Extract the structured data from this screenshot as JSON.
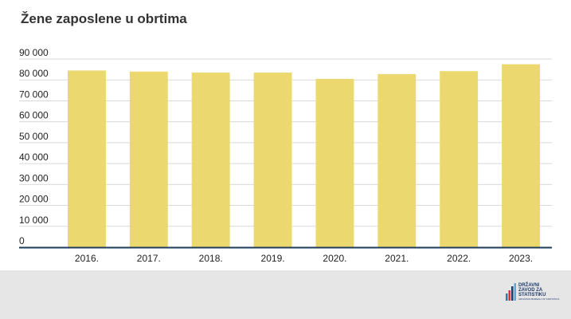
{
  "chart_data": {
    "type": "bar",
    "title": "Žene zaposlene u obrtima",
    "categories": [
      "2016.",
      "2017.",
      "2018.",
      "2019.",
      "2020.",
      "2021.",
      "2022.",
      "2023."
    ],
    "values": [
      84500,
      84000,
      83500,
      83500,
      80500,
      82800,
      84200,
      87500
    ],
    "ylim": [
      0,
      90000
    ],
    "yticks": [
      "0",
      "10 000",
      "20 000",
      "30 000",
      "40 000",
      "50 000",
      "60 000",
      "70 000",
      "80 000",
      "90 000"
    ],
    "grid": true,
    "colors": {
      "bar": "#ebd86f",
      "grid": "#d9d9d9",
      "axis": "#1d3b5a"
    }
  },
  "logo": {
    "line1": "DRŽAVNI",
    "line2": "ZAVOD ZA",
    "line3": "STATISTIKU",
    "sub": "CROATIAN BUREAU OF STATISTICS"
  }
}
